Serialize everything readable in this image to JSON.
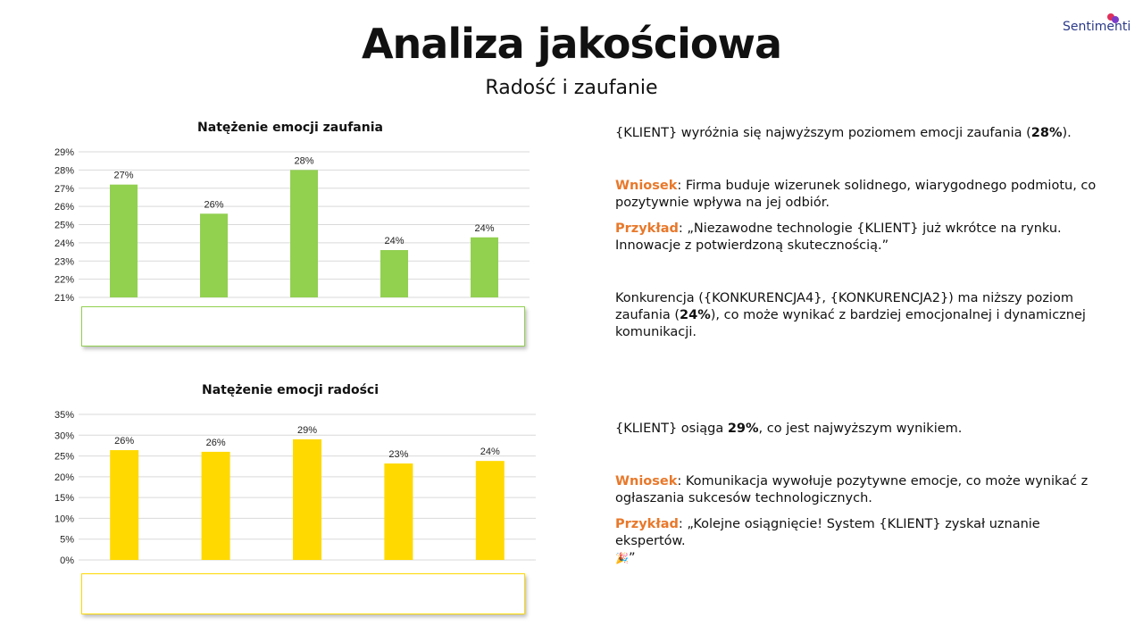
{
  "header": {
    "title": "Analiza jakościowa",
    "subtitle": "Radość i zaufanie",
    "brand": "Sentimenti",
    "brand_colors": [
      "#e0305a",
      "#7a3cc8"
    ]
  },
  "chart_data": [
    {
      "type": "bar",
      "title": "Natężenie emocji zaufania",
      "categories": [
        "",
        "",
        "",
        "",
        ""
      ],
      "values": [
        27.2,
        25.6,
        28.0,
        23.6,
        24.3
      ],
      "data_labels": [
        "27%",
        "26%",
        "28%",
        "24%",
        "24%"
      ],
      "ylim": [
        21,
        29
      ],
      "yticks": [
        "29%",
        "28%",
        "27%",
        "26%",
        "25%",
        "24%",
        "23%",
        "22%",
        "21%"
      ],
      "color": "#92d050",
      "grid": true
    },
    {
      "type": "bar",
      "title": "Natężenie emocji radości",
      "categories": [
        "",
        "",
        "",
        "",
        ""
      ],
      "values": [
        26.4,
        26.0,
        29.0,
        23.2,
        23.8
      ],
      "data_labels": [
        "26%",
        "26%",
        "29%",
        "23%",
        "24%"
      ],
      "ylim": [
        0,
        35
      ],
      "yticks": [
        "35%",
        "30%",
        "25%",
        "20%",
        "15%",
        "10%",
        "5%",
        "0%"
      ],
      "color": "#ffd900",
      "grid": true
    }
  ],
  "text": {
    "block1": {
      "klient": "{KLIENT}",
      "t1": " wyróżnia się najwyższym poziomem emocji zaufania (",
      "value": "28%",
      "t2": ")."
    },
    "block2": {
      "label": "Wniosek",
      "text": ": Firma buduje wizerunek solidnego, wiarygodnego podmiotu, co pozytywnie wpływa na jej odbiór."
    },
    "block3": {
      "label": "Przykład",
      "text": ": „Niezawodne technologie {KLIENT} już wkrótce na rynku. Innowacje z potwierdzoną skutecznością.”"
    },
    "block4": {
      "t1": "Konkurencja ({KONKURENCJA4}, {KONKURENCJA2}) ma niższy poziom zaufania (",
      "value": "24%",
      "t2": "), co może wynikać z bardziej emocjonalnej i dynamicznej komunikacji."
    },
    "block5": {
      "t1": "{KLIENT} osiąga ",
      "value": "29%",
      "t2": ", co jest najwyższym wynikiem."
    },
    "block6": {
      "label": "Wniosek",
      "text": ": Komunikacja wywołuje pozytywne emocje, co może wynikać z ogłaszania sukcesów technologicznych."
    },
    "block7": {
      "label": "Przykład",
      "text": ": „Kolejne osiągnięcie! System {KLIENT} zyskał uznanie ekspertów.",
      "emoji": "🎉",
      "end": "”"
    }
  }
}
